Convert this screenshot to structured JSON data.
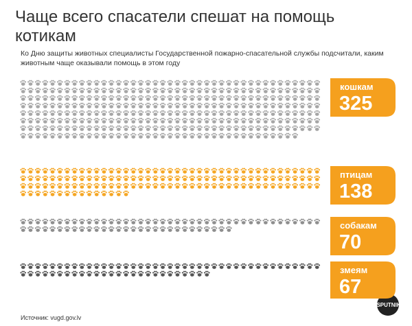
{
  "chart_data": {
    "type": "pictogram",
    "title": "Чаще всего спасатели спешат на помощь котикам",
    "subtitle": "Ко Дню защиты животных специалисты Государственной пожарно-спасательной службы подсчитали, каким животным чаще оказывали помощь в этом году",
    "source": "Источник: vugd.gov.lv",
    "logo": "SPUTNIK",
    "label_color": "#f5a01e",
    "series": [
      {
        "name": "кошкам",
        "value": 325,
        "color": "#a6a6a6"
      },
      {
        "name": "птицам",
        "value": 138,
        "color": "#f5a623"
      },
      {
        "name": "собакам",
        "value": 70,
        "color": "#8e8e8e"
      },
      {
        "name": "змеям",
        "value": 67,
        "color": "#555555"
      }
    ]
  }
}
